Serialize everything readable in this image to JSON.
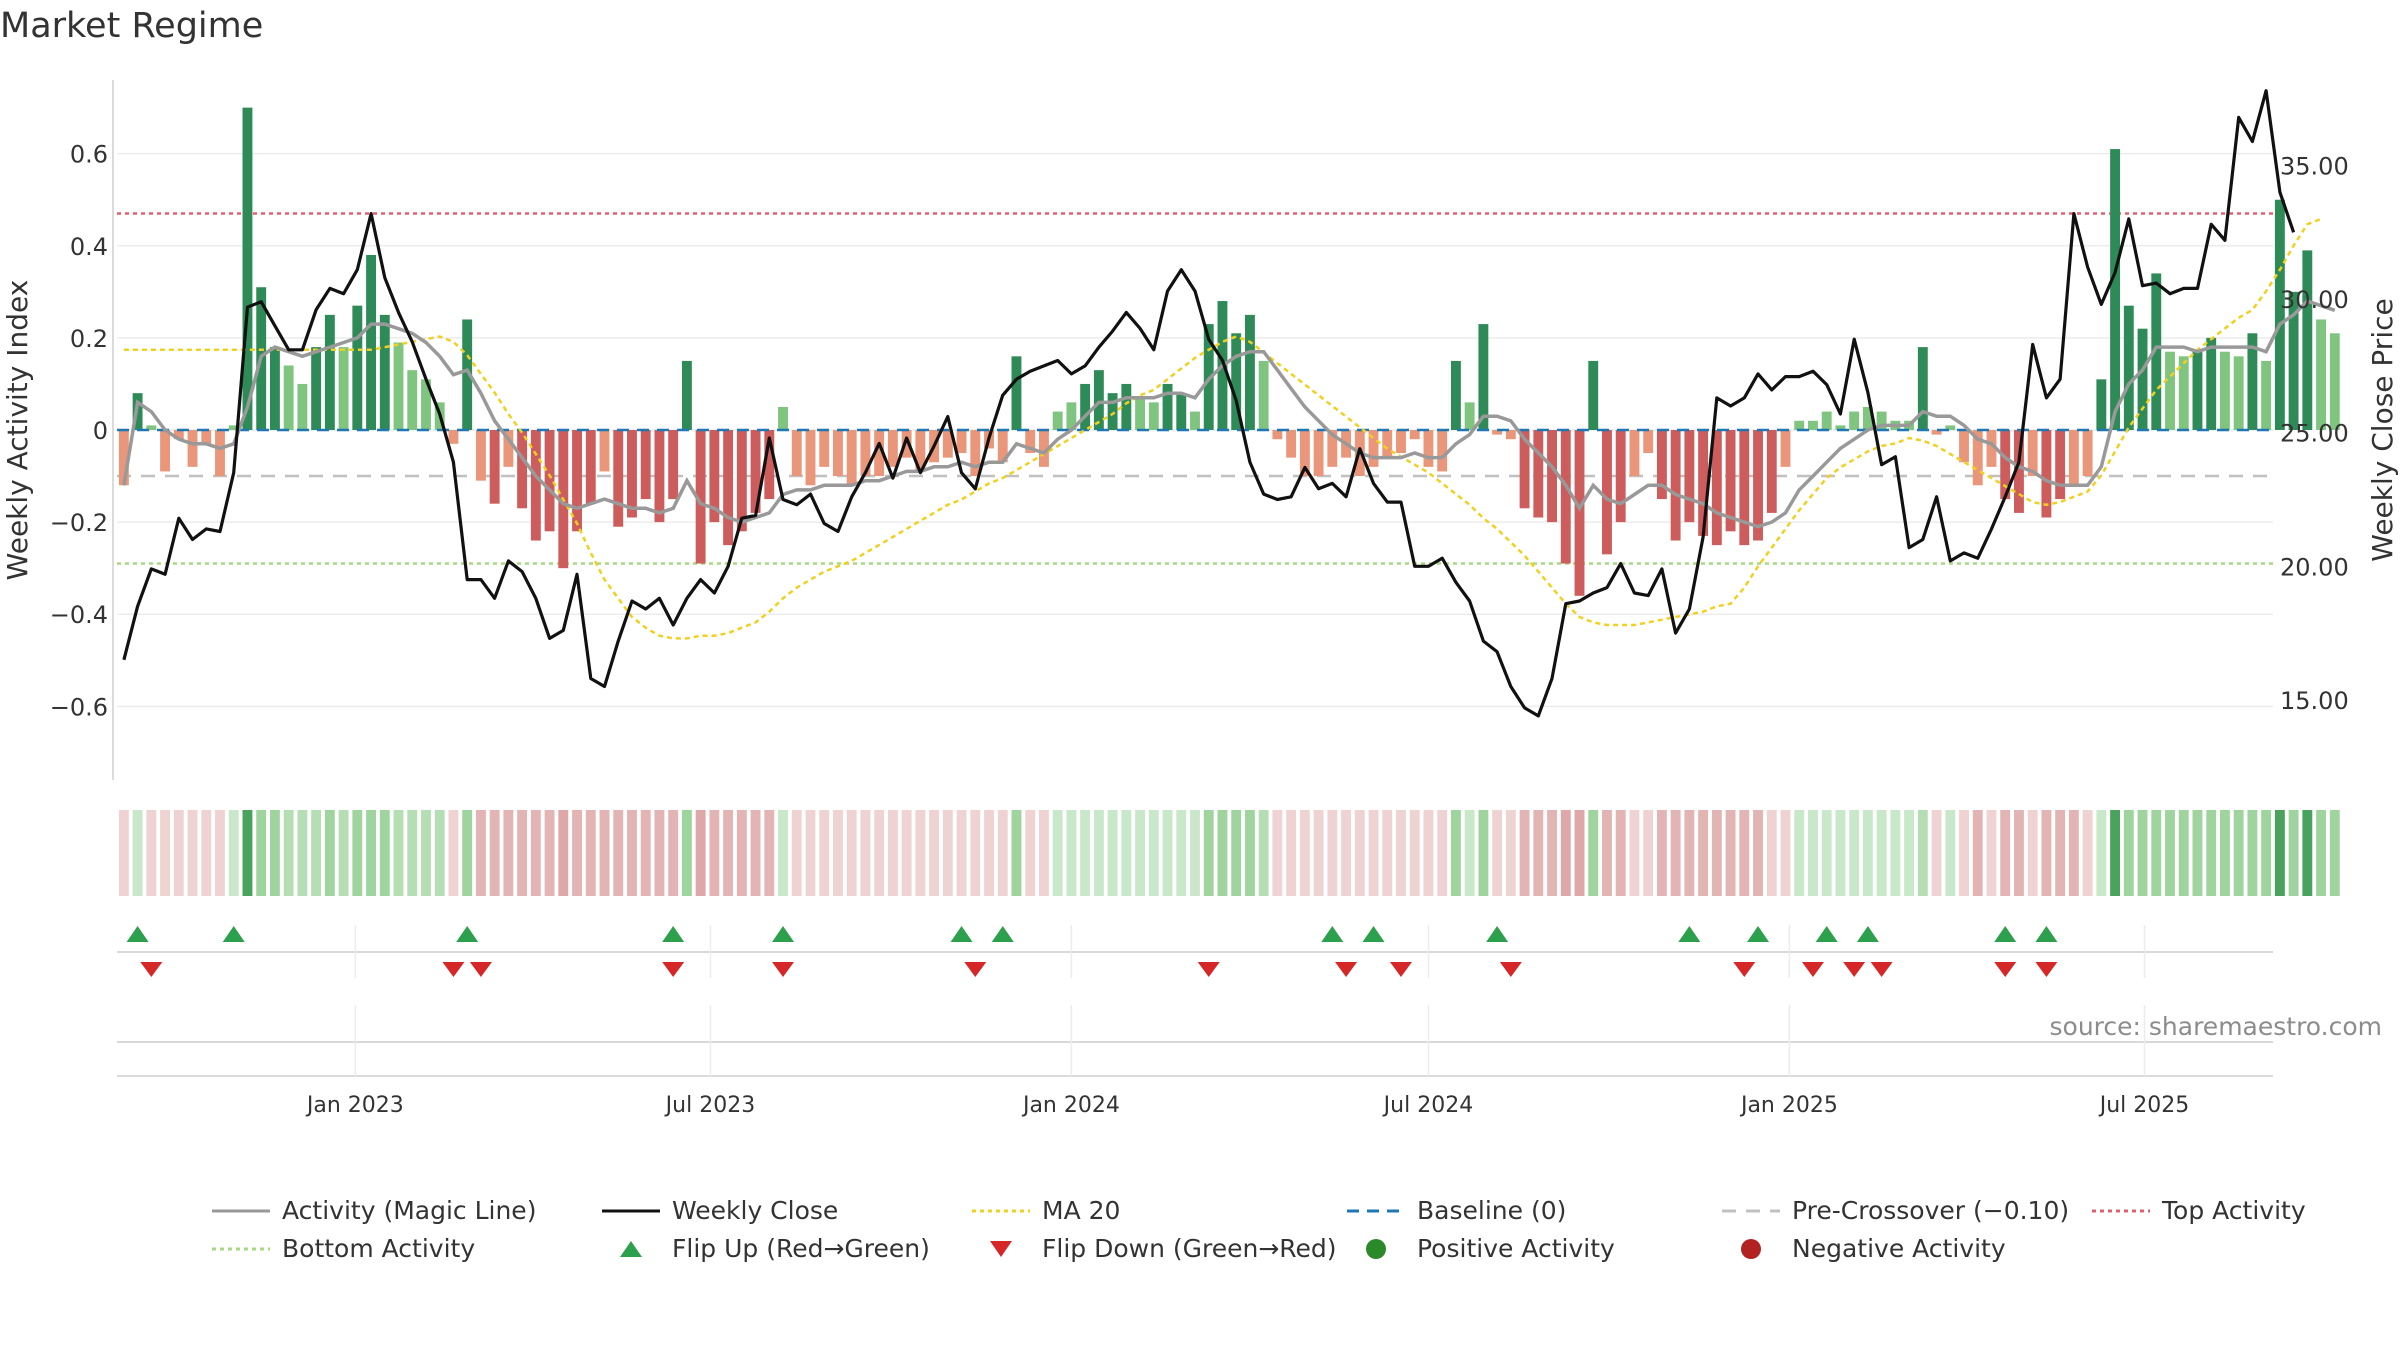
{
  "title": "Market Regime",
  "source": "source: sharemaestro.com",
  "chart_data": {
    "type": "bar",
    "title": "Market Regime",
    "x_start": "2022-09-05",
    "weeks": 157,
    "yleft": {
      "label": "Weekly Activity Index",
      "ticks": [
        "0.6",
        "0.4",
        "0.2",
        "0",
        "−0.2",
        "−0.4",
        "−0.6"
      ],
      "tick_values": [
        0.6,
        0.4,
        0.2,
        0,
        -0.2,
        -0.4,
        -0.6
      ],
      "ylim": [
        -0.76,
        0.76
      ]
    },
    "yright": {
      "label": "Weekly Close Price",
      "ticks": [
        "35.00",
        "30.00",
        "25.00",
        "20.00",
        "15.00"
      ],
      "tick_values": [
        35,
        30,
        25,
        20,
        15
      ],
      "ylim": [
        12.0,
        38.2
      ]
    },
    "x_ticks": [
      {
        "label": "Jan 2023",
        "date": "2023-01-01"
      },
      {
        "label": "Jul 2023",
        "date": "2023-07-01"
      },
      {
        "label": "Jan 2024",
        "date": "2024-01-01"
      },
      {
        "label": "Jul 2024",
        "date": "2024-07-01"
      },
      {
        "label": "Jan 2025",
        "date": "2025-01-01"
      },
      {
        "label": "Jul 2025",
        "date": "2025-07-01"
      }
    ],
    "thresholds": {
      "top_activity": 0.47,
      "bottom_activity": -0.29,
      "pre_crossover": -0.1,
      "baseline": 0
    },
    "colors": {
      "pos_strong": "#2e8b57",
      "pos_light": "#7fc47f",
      "neg_strong": "#cd5c5c",
      "neg_light": "#e9967a",
      "close": "#111111",
      "magic": "#999999",
      "ma20": "#f0d020",
      "baseline": "#1f77b4",
      "top": "#e06070",
      "bottom": "#a8d880",
      "pre": "#c0c0c0",
      "flip_up": "#2ca04c",
      "flip_down": "#d62728"
    },
    "activity": [
      -0.12,
      0.08,
      0.01,
      -0.09,
      -0.02,
      -0.08,
      -0.03,
      -0.1,
      0.01,
      0.7,
      0.31,
      0.18,
      0.14,
      0.1,
      0.18,
      0.25,
      0.18,
      0.27,
      0.38,
      0.25,
      0.19,
      0.13,
      0.11,
      0.06,
      -0.03,
      0.24,
      -0.11,
      -0.16,
      -0.08,
      -0.17,
      -0.24,
      -0.22,
      -0.3,
      -0.22,
      -0.16,
      -0.09,
      -0.21,
      -0.19,
      -0.15,
      -0.2,
      -0.15,
      0.15,
      -0.29,
      -0.2,
      -0.25,
      -0.22,
      -0.18,
      -0.15,
      0.05,
      -0.1,
      -0.12,
      -0.08,
      -0.1,
      -0.12,
      -0.1,
      -0.1,
      -0.08,
      -0.06,
      -0.09,
      -0.07,
      -0.06,
      -0.05,
      -0.1,
      -0.04,
      -0.07,
      0.16,
      -0.05,
      -0.08,
      0.04,
      0.06,
      0.1,
      0.13,
      0.08,
      0.1,
      0.07,
      0.06,
      0.1,
      0.08,
      0.04,
      0.23,
      0.28,
      0.21,
      0.25,
      0.15,
      -0.02,
      -0.06,
      -0.1,
      -0.1,
      -0.08,
      -0.06,
      -0.1,
      -0.08,
      -0.06,
      -0.05,
      -0.02,
      -0.08,
      -0.09,
      0.15,
      0.06,
      0.23,
      -0.01,
      -0.02,
      -0.17,
      -0.19,
      -0.2,
      -0.29,
      -0.36,
      0.15,
      -0.27,
      -0.2,
      -0.1,
      -0.05,
      -0.15,
      -0.24,
      -0.2,
      -0.23,
      -0.25,
      -0.22,
      -0.25,
      -0.24,
      -0.18,
      -0.08,
      0.02,
      0.02,
      0.04,
      0.01,
      0.04,
      0.05,
      0.04,
      0.02,
      0.02,
      0.18,
      -0.01,
      0.01,
      -0.07,
      -0.12,
      -0.08,
      -0.15,
      -0.18,
      -0.1,
      -0.19,
      -0.15,
      -0.12,
      -0.1,
      0.11,
      0.61,
      0.27,
      0.22,
      0.34,
      0.17,
      0.16,
      0.17,
      0.2,
      0.17,
      0.16,
      0.21,
      0.15,
      0.5,
      0.3,
      0.39,
      0.24,
      0.21
    ],
    "close": [
      16.5,
      18.5,
      19.9,
      19.7,
      21.8,
      21,
      21.4,
      21.3,
      23.5,
      29.7,
      29.9,
      29,
      28.1,
      28.1,
      29.6,
      30.4,
      30.2,
      31.1,
      33.2,
      30.8,
      29.5,
      28.4,
      27,
      25.7,
      23.9,
      19.5,
      19.5,
      18.8,
      20.2,
      19.8,
      18.8,
      17.3,
      17.6,
      19.7,
      15.8,
      15.5,
      17.2,
      18.7,
      18.4,
      18.8,
      17.8,
      18.8,
      19.5,
      19,
      20,
      21.8,
      21.9,
      24.8,
      22.5,
      22.3,
      22.7,
      21.6,
      21.3,
      22.6,
      23.5,
      24.6,
      23.3,
      24.8,
      23.5,
      24.5,
      25.6,
      23.5,
      22.9,
      24.8,
      26.4,
      27,
      27.3,
      27.5,
      27.7,
      27.2,
      27.5,
      28.2,
      28.8,
      29.5,
      28.9,
      28.1,
      30.3,
      31.1,
      30.3,
      28.5,
      27.7,
      26.2,
      23.9,
      22.7,
      22.5,
      22.6,
      23.7,
      22.9,
      23.1,
      22.6,
      24.4,
      23.1,
      22.4,
      22.4,
      20,
      20,
      20.3,
      19.4,
      18.7,
      17.2,
      16.8,
      15.5,
      14.7,
      14.4,
      15.8,
      18.6,
      18.7,
      19,
      19.2,
      20.1,
      19,
      18.9,
      19.9,
      17.5,
      18.4,
      21.1,
      26.3,
      26,
      26.3,
      27.2,
      26.6,
      27.1,
      27.1,
      27.3,
      26.8,
      25.7,
      28.5,
      26.5,
      23.8,
      24.1,
      20.7,
      21,
      22.6,
      20.2,
      20.5,
      20.3,
      21.4,
      22.6,
      23.9,
      28.3,
      26.3,
      27,
      33.2,
      31.2,
      29.8,
      31,
      33,
      30.5,
      30.6,
      30.2,
      30.4,
      30.4,
      32.8,
      32.2,
      36.8,
      35.9,
      37.8,
      34,
      32.5
    ],
    "magic": [
      -0.12,
      0.06,
      0.04,
      0.0,
      -0.02,
      -0.03,
      -0.03,
      -0.04,
      -0.03,
      0.05,
      0.16,
      0.18,
      0.17,
      0.16,
      0.17,
      0.18,
      0.19,
      0.2,
      0.23,
      0.23,
      0.22,
      0.21,
      0.19,
      0.16,
      0.12,
      0.13,
      0.08,
      0.02,
      -0.02,
      -0.06,
      -0.1,
      -0.13,
      -0.16,
      -0.17,
      -0.16,
      -0.15,
      -0.16,
      -0.17,
      -0.17,
      -0.18,
      -0.17,
      -0.11,
      -0.16,
      -0.17,
      -0.19,
      -0.2,
      -0.19,
      -0.18,
      -0.14,
      -0.13,
      -0.13,
      -0.12,
      -0.12,
      -0.12,
      -0.11,
      -0.11,
      -0.1,
      -0.09,
      -0.09,
      -0.08,
      -0.08,
      -0.07,
      -0.08,
      -0.07,
      -0.07,
      -0.03,
      -0.04,
      -0.05,
      -0.02,
      0.0,
      0.03,
      0.06,
      0.06,
      0.07,
      0.07,
      0.07,
      0.08,
      0.08,
      0.07,
      0.11,
      0.14,
      0.16,
      0.17,
      0.17,
      0.13,
      0.09,
      0.05,
      0.02,
      -0.01,
      -0.03,
      -0.05,
      -0.06,
      -0.06,
      -0.06,
      -0.05,
      -0.06,
      -0.06,
      -0.03,
      -0.01,
      0.03,
      0.03,
      0.02,
      -0.02,
      -0.05,
      -0.08,
      -0.12,
      -0.17,
      -0.12,
      -0.15,
      -0.16,
      -0.14,
      -0.12,
      -0.12,
      -0.14,
      -0.15,
      -0.16,
      -0.18,
      -0.19,
      -0.2,
      -0.21,
      -0.2,
      -0.18,
      -0.13,
      -0.1,
      -0.07,
      -0.04,
      -0.02,
      0.0,
      0.01,
      0.01,
      0.01,
      0.04,
      0.03,
      0.03,
      0.01,
      -0.02,
      -0.03,
      -0.06,
      -0.08,
      -0.09,
      -0.11,
      -0.12,
      -0.12,
      -0.12,
      -0.08,
      0.04,
      0.1,
      0.13,
      0.18,
      0.18,
      0.18,
      0.17,
      0.18,
      0.18,
      0.18,
      0.18,
      0.17,
      0.23,
      0.25,
      0.28,
      0.27,
      0.26
    ],
    "ma20": [
      28.1,
      28.1,
      28.1,
      28.1,
      28.1,
      28.1,
      28.1,
      28.1,
      28.1,
      28.1,
      28.1,
      28.1,
      28.1,
      28.1,
      28.1,
      28.1,
      28.1,
      28.1,
      28.1,
      28.2,
      28.3,
      28.4,
      28.5,
      28.6,
      28.4,
      27.9,
      27.2,
      26.5,
      25.7,
      25,
      24.2,
      23.4,
      22.5,
      21.6,
      20.5,
      19.5,
      18.8,
      18.1,
      17.7,
      17.4,
      17.3,
      17.3,
      17.4,
      17.4,
      17.5,
      17.7,
      17.9,
      18.3,
      18.8,
      19.2,
      19.5,
      19.8,
      20,
      20.2,
      20.5,
      20.8,
      21.1,
      21.4,
      21.7,
      22,
      22.3,
      22.5,
      22.8,
      23.1,
      23.3,
      23.6,
      23.9,
      24.2,
      24.5,
      24.8,
      25.1,
      25.4,
      25.7,
      26.1,
      26.4,
      26.6,
      27,
      27.4,
      27.8,
      28.1,
      28.4,
      28.6,
      28.4,
      28,
      27.6,
      27.2,
      26.8,
      26.4,
      26,
      25.6,
      25.2,
      24.8,
      24.4,
      24.1,
      23.8,
      23.5,
      23.1,
      22.7,
      22.3,
      21.8,
      21.4,
      20.9,
      20.4,
      19.8,
      19.2,
      18.6,
      18.1,
      17.9,
      17.8,
      17.8,
      17.8,
      17.9,
      18,
      18.1,
      18.2,
      18.3,
      18.5,
      18.6,
      19.2,
      20,
      20.7,
      21.4,
      22.1,
      22.7,
      23.3,
      23.7,
      24,
      24.3,
      24.5,
      24.6,
      24.8,
      24.7,
      24.5,
      24.2,
      23.9,
      23.6,
      23.3,
      23,
      22.7,
      22.4,
      22.3,
      22.4,
      22.6,
      22.8,
      23.4,
      24.3,
      25.2,
      25.9,
      26.6,
      27.1,
      27.6,
      28.1,
      28.5,
      28.9,
      29.3,
      29.6,
      30.3,
      31.1,
      32,
      32.8,
      33
    ],
    "band_colors": [
      "#efd3d3",
      "#c9e8c9",
      "#efd3d3",
      "#efd3d3",
      "#efd3d3",
      "#efd3d3",
      "#efd3d3",
      "#efd3d3",
      "#c9e8c9",
      "#4aa35c",
      "#9fd49f",
      "#9fd49f",
      "#b5deb5",
      "#b5deb5",
      "#b5deb5",
      "#9fd49f",
      "#b5deb5",
      "#9fd49f",
      "#9fd49f",
      "#9fd49f",
      "#b5deb5",
      "#b5deb5",
      "#b5deb5",
      "#b5deb5",
      "#efd3d3",
      "#9fd49f",
      "#e3b4b4",
      "#e3b4b4",
      "#e3b4b4",
      "#e3b4b4",
      "#e3b4b4",
      "#e3b4b4",
      "#dfa8a8",
      "#e3b4b4",
      "#e3b4b4",
      "#e3b4b4",
      "#e3b4b4",
      "#e3b4b4",
      "#e3b4b4",
      "#e3b4b4",
      "#e3b4b4",
      "#9fd49f",
      "#dfa8a8",
      "#e3b4b4",
      "#e3b4b4",
      "#e3b4b4",
      "#e3b4b4",
      "#e3b4b4",
      "#c9e8c9",
      "#efd3d3",
      "#efd3d3",
      "#efd3d3",
      "#efd3d3",
      "#efd3d3",
      "#efd3d3",
      "#efd3d3",
      "#efd3d3",
      "#efd3d3",
      "#efd3d3",
      "#efd3d3",
      "#efd3d3",
      "#efd3d3",
      "#efd3d3",
      "#efd3d3",
      "#efd3d3",
      "#9fd49f",
      "#efd3d3",
      "#efd3d3",
      "#c9e8c9",
      "#c9e8c9",
      "#c9e8c9",
      "#c9e8c9",
      "#c9e8c9",
      "#c9e8c9",
      "#c9e8c9",
      "#c9e8c9",
      "#c9e8c9",
      "#c9e8c9",
      "#c9e8c9",
      "#9fd49f",
      "#9fd49f",
      "#9fd49f",
      "#9fd49f",
      "#b5deb5",
      "#efd3d3",
      "#efd3d3",
      "#efd3d3",
      "#efd3d3",
      "#efd3d3",
      "#efd3d3",
      "#efd3d3",
      "#efd3d3",
      "#efd3d3",
      "#efd3d3",
      "#efd3d3",
      "#efd3d3",
      "#efd3d3",
      "#9fd49f",
      "#c9e8c9",
      "#9fd49f",
      "#efd3d3",
      "#efd3d3",
      "#e3b4b4",
      "#e3b4b4",
      "#e3b4b4",
      "#dfa8a8",
      "#dfa8a8",
      "#9fd49f",
      "#e3b4b4",
      "#e3b4b4",
      "#efd3d3",
      "#efd3d3",
      "#e3b4b4",
      "#e3b4b4",
      "#e3b4b4",
      "#e3b4b4",
      "#e3b4b4",
      "#e3b4b4",
      "#e3b4b4",
      "#e3b4b4",
      "#efd3d3",
      "#efd3d3",
      "#c9e8c9",
      "#c9e8c9",
      "#c9e8c9",
      "#c9e8c9",
      "#c9e8c9",
      "#c9e8c9",
      "#c9e8c9",
      "#c9e8c9",
      "#c9e8c9",
      "#b5deb5",
      "#efd3d3",
      "#c9e8c9",
      "#efd3d3",
      "#e3b4b4",
      "#efd3d3",
      "#e3b4b4",
      "#e3b4b4",
      "#efd3d3",
      "#e3b4b4",
      "#e3b4b4",
      "#e3b4b4",
      "#efd3d3",
      "#c9e8c9",
      "#4aa35c",
      "#9fd49f",
      "#9fd49f",
      "#9fd49f",
      "#9fd49f",
      "#9fd49f",
      "#9fd49f",
      "#9fd49f",
      "#9fd49f",
      "#9fd49f",
      "#9fd49f",
      "#9fd49f",
      "#4aa35c",
      "#9fd49f",
      "#4aa35c",
      "#9fd49f",
      "#9fd49f"
    ],
    "flip_up_weeks": [
      1,
      8,
      25,
      40,
      48,
      61,
      64,
      88,
      91,
      100,
      114,
      119,
      124,
      127,
      137,
      140
    ],
    "flip_down_weeks": [
      2,
      24,
      26,
      40,
      48,
      62,
      79,
      89,
      93,
      101,
      118,
      123,
      126,
      128,
      137,
      140
    ],
    "legend": [
      {
        "label": "Activity (Magic Line)",
        "kind": "line",
        "color": "#999999",
        "dash": ""
      },
      {
        "label": "Weekly Close",
        "kind": "line",
        "color": "#111111",
        "dash": ""
      },
      {
        "label": "MA 20",
        "kind": "line",
        "color": "#f0d020",
        "dash": "4 4"
      },
      {
        "label": "Baseline (0)",
        "kind": "line",
        "color": "#1f77b4",
        "dash": "12 8"
      },
      {
        "label": "Pre-Crossover (−0.10)",
        "kind": "line",
        "color": "#c0c0c0",
        "dash": "14 10"
      },
      {
        "label": "Top Activity",
        "kind": "line",
        "color": "#e06070",
        "dash": "4 4"
      },
      {
        "label": "Bottom Activity",
        "kind": "line",
        "color": "#a8d880",
        "dash": "4 4"
      },
      {
        "label": "Flip Up (Red→Green)",
        "kind": "tri-up",
        "color": "#2ca04c"
      },
      {
        "label": "Flip Down (Green→Red)",
        "kind": "tri-down",
        "color": "#d62728"
      },
      {
        "label": "Positive Activity",
        "kind": "dot",
        "color": "#2a8a2a"
      },
      {
        "label": "Negative Activity",
        "kind": "dot",
        "color": "#b22222"
      }
    ]
  }
}
